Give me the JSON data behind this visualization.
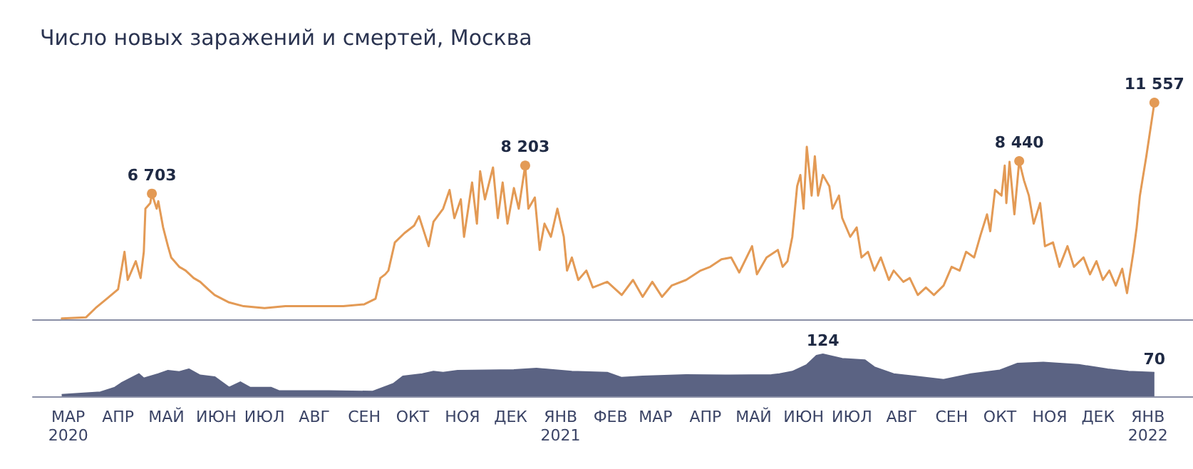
{
  "chart_data": [
    {
      "type": "line",
      "title": "Число новых заражений и смертей, Москва",
      "color": "#e39a55",
      "xlim": [
        "2020-02-22",
        "2022-02-12"
      ],
      "tick_labels": false,
      "x": [
        "2020-03-11",
        "2020-03-26",
        "2020-04-01",
        "2020-04-08",
        "2020-04-15",
        "2020-04-19",
        "2020-04-21",
        "2020-04-26",
        "2020-04-29",
        "2020-05-01",
        "2020-05-02",
        "2020-05-05",
        "2020-05-06",
        "2020-05-09",
        "2020-05-10",
        "2020-05-13",
        "2020-05-16",
        "2020-05-18",
        "2020-05-23",
        "2020-05-27",
        "2020-06-01",
        "2020-06-05",
        "2020-06-10",
        "2020-06-14",
        "2020-06-23",
        "2020-07-02",
        "2020-07-15",
        "2020-07-28",
        "2020-08-15",
        "2020-09-02",
        "2020-09-15",
        "2020-09-22",
        "2020-09-25",
        "2020-09-28",
        "2020-09-30",
        "2020-10-04",
        "2020-10-10",
        "2020-10-16",
        "2020-10-19",
        "2020-10-25",
        "2020-10-28",
        "2020-11-03",
        "2020-11-07",
        "2020-11-10",
        "2020-11-14",
        "2020-11-16",
        "2020-11-21",
        "2020-11-24",
        "2020-11-26",
        "2020-11-29",
        "2020-12-04",
        "2020-12-07",
        "2020-12-10",
        "2020-12-13",
        "2020-12-17",
        "2020-12-20",
        "2020-12-24",
        "2020-12-26",
        "2020-12-30",
        "2021-01-02",
        "2021-01-05",
        "2021-01-09",
        "2021-01-13",
        "2021-01-17",
        "2021-01-19",
        "2021-01-22",
        "2021-01-26",
        "2021-01-31",
        "2021-02-04",
        "2021-02-13",
        "2021-02-22",
        "2021-03-01",
        "2021-03-07",
        "2021-03-13",
        "2021-03-19",
        "2021-03-25",
        "2021-04-03",
        "2021-04-12",
        "2021-04-18",
        "2021-04-25",
        "2021-05-01",
        "2021-05-06",
        "2021-05-14",
        "2021-05-17",
        "2021-05-23",
        "2021-05-30",
        "2021-06-02",
        "2021-06-05",
        "2021-06-08",
        "2021-06-11",
        "2021-06-13",
        "2021-06-15",
        "2021-06-17",
        "2021-06-20",
        "2021-06-22",
        "2021-06-24",
        "2021-06-27",
        "2021-07-01",
        "2021-07-03",
        "2021-07-07",
        "2021-07-09",
        "2021-07-14",
        "2021-07-18",
        "2021-07-21",
        "2021-07-25",
        "2021-07-29",
        "2021-08-02",
        "2021-08-07",
        "2021-08-10",
        "2021-08-16",
        "2021-08-20",
        "2021-08-25",
        "2021-08-30",
        "2021-09-04",
        "2021-09-10",
        "2021-09-15",
        "2021-09-20",
        "2021-09-24",
        "2021-09-29",
        "2021-10-03",
        "2021-10-07",
        "2021-10-09",
        "2021-10-12",
        "2021-10-16",
        "2021-10-18",
        "2021-10-19",
        "2021-10-21",
        "2021-10-24",
        "2021-10-27",
        "2021-10-30",
        "2021-11-02",
        "2021-11-05",
        "2021-11-09",
        "2021-11-12",
        "2021-11-17",
        "2021-11-21",
        "2021-11-26",
        "2021-11-30",
        "2021-12-06",
        "2021-12-10",
        "2021-12-14",
        "2021-12-18",
        "2021-12-22",
        "2021-12-26",
        "2021-12-30",
        "2022-01-02",
        "2022-01-06",
        "2022-01-08",
        "2022-01-10",
        "2022-01-14",
        "2022-01-19"
      ],
      "values": [
        50,
        100,
        600,
        1100,
        1600,
        3600,
        2100,
        3100,
        2200,
        3600,
        5900,
        6200,
        6703,
        5900,
        6300,
        4900,
        3900,
        3300,
        2800,
        2600,
        2200,
        2000,
        1600,
        1300,
        900,
        700,
        600,
        700,
        700,
        700,
        800,
        1100,
        2200,
        2400,
        2600,
        4100,
        4600,
        5000,
        5500,
        3900,
        5200,
        5900,
        6900,
        5400,
        6400,
        4400,
        7300,
        5100,
        7900,
        6400,
        8100,
        5400,
        7300,
        5100,
        7000,
        5900,
        8203,
        5900,
        6500,
        3700,
        5100,
        4400,
        5900,
        4400,
        2600,
        3300,
        2100,
        2600,
        1700,
        2000,
        1300,
        2100,
        1200,
        2000,
        1200,
        1800,
        2100,
        2600,
        2800,
        3200,
        3300,
        2500,
        3900,
        2400,
        3300,
        3700,
        2800,
        3100,
        4400,
        7100,
        7700,
        5900,
        9200,
        6600,
        8700,
        6600,
        7700,
        7100,
        5900,
        6600,
        5400,
        4400,
        4900,
        3300,
        3600,
        2600,
        3300,
        2100,
        2600,
        2000,
        2200,
        1300,
        1700,
        1300,
        1800,
        2800,
        2600,
        3600,
        3300,
        4500,
        5600,
        4700,
        6900,
        6600,
        8200,
        6200,
        8400,
        5600,
        8440,
        7400,
        6600,
        5100,
        6200,
        3900,
        4100,
        2800,
        3900,
        2800,
        3300,
        2400,
        3100,
        2100,
        2600,
        1800,
        2700,
        1400,
        3600,
        4900,
        6600,
        8700,
        11557
      ],
      "value_labels": [
        null,
        null,
        null,
        null,
        null,
        null,
        null,
        null,
        null,
        null,
        null,
        null,
        "6 703",
        null,
        null,
        null,
        null,
        null,
        null,
        null,
        null,
        null,
        null,
        null,
        null,
        null,
        null,
        null,
        null,
        null,
        null,
        null,
        null,
        null,
        null,
        null,
        null,
        null,
        null,
        null,
        null,
        null,
        null,
        null,
        null,
        null,
        null,
        null,
        null,
        null,
        null,
        null,
        null,
        null,
        null,
        null,
        "8 203",
        null,
        null,
        null,
        null,
        null,
        null,
        null,
        null,
        null,
        null,
        null,
        null,
        null,
        null,
        null,
        null,
        null,
        null,
        null,
        null,
        null,
        null,
        null,
        null,
        null,
        null,
        null,
        null,
        null,
        null,
        null,
        null,
        null,
        null,
        null,
        null,
        null,
        null,
        null,
        null,
        null,
        null,
        null,
        null,
        null,
        null,
        null,
        null,
        null,
        null,
        null,
        null,
        null,
        null,
        null,
        null,
        null,
        null,
        null,
        null,
        null,
        null,
        null,
        null,
        null,
        null,
        null,
        null,
        null,
        null,
        null,
        "8 440",
        null,
        null,
        null,
        null,
        null,
        null,
        null,
        null,
        null,
        null,
        null,
        null,
        null,
        null,
        null,
        null,
        null,
        null,
        null,
        null,
        null,
        "11 557"
      ]
    },
    {
      "type": "area",
      "color": "#5b6383",
      "xlim": [
        "2020-02-22",
        "2022-02-12"
      ],
      "tick_labels": "x",
      "xticks": [
        {
          "value": "2020-03-15",
          "label": "МАР\n2020"
        },
        {
          "value": "2020-04-15",
          "label": "АПР"
        },
        {
          "value": "2020-05-15",
          "label": "МАЙ"
        },
        {
          "value": "2020-06-15",
          "label": "ИЮН"
        },
        {
          "value": "2020-07-15",
          "label": "ИЮЛ"
        },
        {
          "value": "2020-08-15",
          "label": "АВГ"
        },
        {
          "value": "2020-09-15",
          "label": "СЕН"
        },
        {
          "value": "2020-10-15",
          "label": "ОКТ"
        },
        {
          "value": "2020-11-15",
          "label": "НОЯ"
        },
        {
          "value": "2020-12-15",
          "label": "ДЕК"
        },
        {
          "value": "2021-01-15",
          "label": "ЯНВ\n2021"
        },
        {
          "value": "2021-02-15",
          "label": "ФЕВ"
        },
        {
          "value": "2021-03-15",
          "label": "МАР"
        },
        {
          "value": "2021-04-15",
          "label": "АПР"
        },
        {
          "value": "2021-05-15",
          "label": "МАЙ"
        },
        {
          "value": "2021-06-15",
          "label": "ИЮН"
        },
        {
          "value": "2021-07-15",
          "label": "ИЮЛ"
        },
        {
          "value": "2021-08-15",
          "label": "АВГ"
        },
        {
          "value": "2021-09-15",
          "label": "СЕН"
        },
        {
          "value": "2021-10-15",
          "label": "ОКТ"
        },
        {
          "value": "2021-11-15",
          "label": "НОЯ"
        },
        {
          "value": "2021-12-15",
          "label": "ДЕК"
        },
        {
          "value": "2022-01-15",
          "label": "ЯНВ\n2022"
        }
      ],
      "x": [
        "2020-03-11",
        "2020-04-04",
        "2020-04-13",
        "2020-04-17",
        "2020-04-28",
        "2020-05-01",
        "2020-05-10",
        "2020-05-16",
        "2020-05-23",
        "2020-05-29",
        "2020-06-05",
        "2020-06-14",
        "2020-06-23",
        "2020-06-30",
        "2020-07-06",
        "2020-07-19",
        "2020-07-24",
        "2020-08-24",
        "2020-09-20",
        "2020-10-03",
        "2020-10-09",
        "2020-10-21",
        "2020-10-28",
        "2020-11-03",
        "2020-11-12",
        "2020-11-30",
        "2020-12-17",
        "2020-12-31",
        "2021-01-22",
        "2021-02-13",
        "2021-02-22",
        "2021-03-07",
        "2021-04-03",
        "2021-04-30",
        "2021-05-26",
        "2021-05-31",
        "2021-06-08",
        "2021-06-17",
        "2021-06-23",
        "2021-06-27",
        "2021-07-09",
        "2021-07-23",
        "2021-07-29",
        "2021-08-10",
        "2021-08-23",
        "2021-09-10",
        "2021-09-27",
        "2021-10-15",
        "2021-10-26",
        "2021-11-11",
        "2021-12-03",
        "2021-12-21",
        "2022-01-03",
        "2022-01-19"
      ],
      "values": [
        5,
        12,
        26,
        39,
        66,
        53,
        66,
        76,
        72,
        80,
        62,
        57,
        26,
        42,
        26,
        26,
        16,
        16,
        14,
        37,
        59,
        66,
        73,
        70,
        76,
        77,
        78,
        82,
        73,
        70,
        55,
        59,
        63,
        62,
        63,
        66,
        73,
        93,
        120,
        124,
        111,
        107,
        86,
        66,
        59,
        49,
        66,
        77,
        97,
        100,
        93,
        80,
        73,
        70
      ],
      "value_labels": [
        null,
        null,
        null,
        null,
        null,
        null,
        null,
        null,
        null,
        null,
        null,
        null,
        null,
        null,
        null,
        null,
        null,
        null,
        null,
        null,
        null,
        null,
        null,
        null,
        null,
        null,
        null,
        null,
        null,
        null,
        null,
        null,
        null,
        null,
        null,
        null,
        null,
        null,
        null,
        "124",
        null,
        null,
        null,
        null,
        null,
        null,
        null,
        null,
        null,
        null,
        null,
        null,
        null,
        "70"
      ]
    }
  ]
}
